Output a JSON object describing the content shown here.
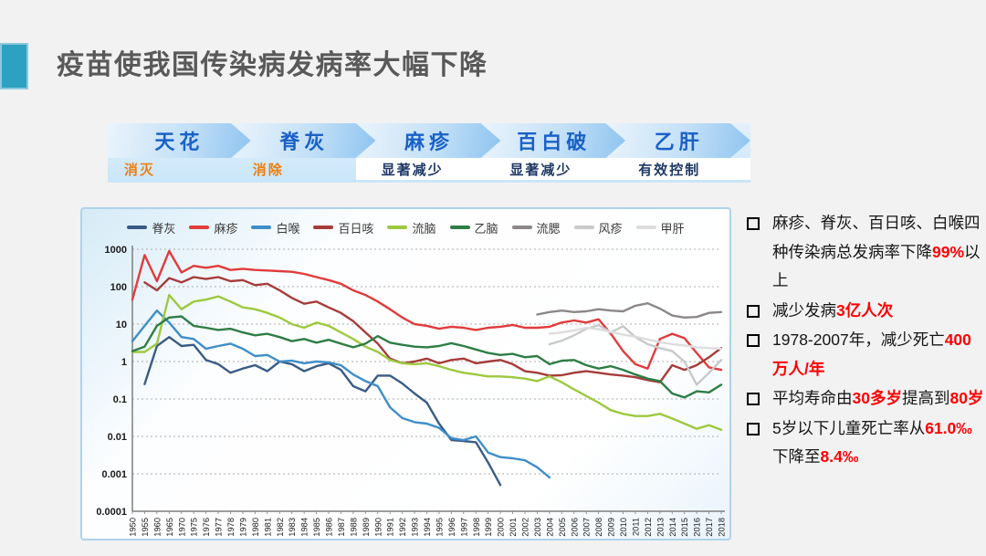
{
  "slide": {
    "background": "#F2F2F2"
  },
  "title": {
    "text": "疫苗使我国传染病发病率大幅下降",
    "accent_color": "#2EA1C0",
    "text_color": "#595959"
  },
  "banner": {
    "arrow_text_color": "#1A61C7",
    "status_colors": {
      "orange": "#F07E0E",
      "blue": "#1F3864"
    },
    "stages": [
      {
        "label": "天花",
        "status": "消灭",
        "status_style": "orange"
      },
      {
        "label": "脊灰",
        "status": "消除",
        "status_style": "orange"
      },
      {
        "label": "麻疹",
        "status": "显著减少",
        "status_style": "blue"
      },
      {
        "label": "百白破",
        "status": "显著减少",
        "status_style": "blue"
      },
      {
        "label": "乙肝",
        "status": "有效控制",
        "status_style": "blue"
      }
    ]
  },
  "chart_data": {
    "type": "line",
    "y_scale": "log",
    "ylim": [
      0.0001,
      1000
    ],
    "y_ticks": [
      "1000",
      "100",
      "10",
      "1",
      "0.1",
      "0.01",
      "0.001",
      "0.0001"
    ],
    "grid": "horizontal-dashed",
    "legend_position": "top",
    "categories": [
      "1950",
      "1955",
      "1960",
      "1965",
      "1970",
      "1975",
      "1976",
      "1977",
      "1978",
      "1979",
      "1980",
      "1981",
      "1982",
      "1983",
      "1984",
      "1985",
      "1986",
      "1987",
      "1988",
      "1989",
      "1990",
      "1991",
      "1992",
      "1993",
      "1994",
      "1995",
      "1996",
      "1997",
      "1998",
      "1999",
      "2000",
      "2001",
      "2002",
      "2003",
      "2004",
      "2005",
      "2006",
      "2007",
      "2008",
      "2009",
      "2010",
      "2011",
      "2012",
      "2013",
      "2014",
      "2015",
      "2016",
      "2017",
      "2018"
    ],
    "series": [
      {
        "name": "脊灰",
        "color": "#3A5C84",
        "values": [
          null,
          0.25,
          2.6,
          4.5,
          2.6,
          2.8,
          1.1,
          0.85,
          0.5,
          0.65,
          0.8,
          0.55,
          1.0,
          0.85,
          0.55,
          0.75,
          0.9,
          0.6,
          0.22,
          0.16,
          0.42,
          0.42,
          0.26,
          0.14,
          0.08,
          0.022,
          0.008,
          0.0075,
          0.007,
          0.002,
          0.0005,
          null,
          null,
          null,
          null,
          null,
          null,
          null,
          null,
          null,
          null,
          null,
          null,
          null,
          null,
          null,
          null,
          null,
          null
        ]
      },
      {
        "name": "麻疹",
        "color": "#E23B3B",
        "values": [
          45,
          700,
          140,
          900,
          240,
          360,
          320,
          360,
          280,
          300,
          280,
          270,
          260,
          250,
          220,
          180,
          150,
          120,
          80,
          60,
          40,
          25,
          15,
          10,
          9,
          7.5,
          8.5,
          8,
          7,
          8,
          8.5,
          9.5,
          8,
          8,
          8.5,
          11,
          12.5,
          11,
          13.5,
          5.5,
          1.9,
          0.85,
          0.65,
          4,
          5.5,
          4.2,
          1.7,
          0.7,
          0.6
        ]
      },
      {
        "name": "白喉",
        "color": "#3E8EC9",
        "values": [
          3.5,
          9,
          23,
          11,
          4.5,
          4,
          2.2,
          2.6,
          3.0,
          2.2,
          1.4,
          1.5,
          1.0,
          1.05,
          0.9,
          1.0,
          0.95,
          0.8,
          0.45,
          0.3,
          0.22,
          0.06,
          0.031,
          0.024,
          0.022,
          0.017,
          0.009,
          0.008,
          0.01,
          0.0037,
          0.0028,
          0.0026,
          0.0023,
          0.0015,
          0.0008,
          null,
          null,
          null,
          null,
          null,
          null,
          null,
          null,
          null,
          null,
          null,
          null,
          null,
          null
        ]
      },
      {
        "name": "百日咳",
        "color": "#A63C3A",
        "values": [
          null,
          130,
          80,
          170,
          130,
          180,
          160,
          180,
          140,
          150,
          110,
          120,
          80,
          50,
          35,
          40,
          28,
          20,
          12,
          6,
          3,
          1.2,
          0.9,
          1.0,
          1.2,
          0.9,
          1.1,
          1.2,
          0.9,
          1.0,
          1.1,
          0.85,
          0.55,
          0.5,
          0.42,
          0.43,
          0.5,
          0.55,
          0.5,
          0.45,
          0.42,
          0.38,
          0.32,
          0.28,
          0.8,
          0.6,
          0.8,
          1.3,
          2.3
        ]
      },
      {
        "name": "流脑",
        "color": "#9DC93F",
        "values": [
          1.8,
          1.8,
          3,
          60,
          25,
          40,
          45,
          55,
          40,
          28,
          25,
          20,
          15,
          10,
          8,
          11,
          9,
          6,
          4,
          2.5,
          1.8,
          1.1,
          0.9,
          0.85,
          0.9,
          0.75,
          0.6,
          0.5,
          0.45,
          0.4,
          0.4,
          0.38,
          0.35,
          0.3,
          0.4,
          0.28,
          0.18,
          0.12,
          0.08,
          0.05,
          0.04,
          0.035,
          0.035,
          0.04,
          0.03,
          0.022,
          0.016,
          0.02,
          0.015
        ]
      },
      {
        "name": "乙脑",
        "color": "#2E7D45",
        "values": [
          1.9,
          2.5,
          9,
          15,
          16,
          9,
          8,
          7,
          7.5,
          6,
          5,
          5.5,
          4.5,
          3.5,
          4,
          3.2,
          3.8,
          3,
          2.4,
          3,
          4.8,
          3.2,
          2.8,
          2.5,
          2.4,
          2.6,
          3.1,
          2.6,
          2.1,
          1.7,
          1.5,
          1.6,
          1.3,
          1.4,
          0.85,
          1.05,
          1.1,
          0.8,
          0.65,
          0.75,
          0.6,
          0.45,
          0.35,
          0.3,
          0.14,
          0.11,
          0.16,
          0.15,
          0.24
        ]
      },
      {
        "name": "流腮",
        "color": "#8C8888",
        "values": [
          null,
          null,
          null,
          null,
          null,
          null,
          null,
          null,
          null,
          null,
          null,
          null,
          null,
          null,
          null,
          null,
          null,
          null,
          null,
          null,
          null,
          null,
          null,
          null,
          null,
          null,
          null,
          null,
          null,
          null,
          null,
          null,
          null,
          18,
          21,
          23,
          21,
          22,
          25,
          23,
          22,
          31,
          36,
          26,
          17,
          15,
          15.5,
          20,
          21
        ]
      },
      {
        "name": "风疹",
        "color": "#C9C9C9",
        "values": [
          null,
          null,
          null,
          null,
          null,
          null,
          null,
          null,
          null,
          null,
          null,
          null,
          null,
          null,
          null,
          null,
          null,
          null,
          null,
          null,
          null,
          null,
          null,
          null,
          null,
          null,
          null,
          null,
          null,
          null,
          null,
          null,
          null,
          null,
          2.9,
          3.6,
          5,
          7.5,
          9.4,
          6,
          8.8,
          4.5,
          2.9,
          2.3,
          1.9,
          1.0,
          0.24,
          0.5,
          1.1
        ]
      },
      {
        "name": "甲肝",
        "color": "#DDDDDD",
        "values": [
          null,
          null,
          null,
          null,
          null,
          null,
          null,
          null,
          null,
          null,
          null,
          null,
          null,
          null,
          null,
          null,
          null,
          null,
          null,
          null,
          null,
          null,
          null,
          null,
          null,
          null,
          null,
          null,
          null,
          null,
          null,
          null,
          null,
          null,
          5.5,
          6,
          6.8,
          8,
          7.3,
          6.2,
          5.2,
          4.6,
          3.9,
          3.3,
          2.9,
          2.7,
          2.4,
          2.3,
          2.2
        ]
      }
    ],
    "style": {
      "gridline_color": "#ABABAB",
      "axis_color": "#7F7F7F",
      "plot_bg": "#FFFFFF"
    }
  },
  "bullets": {
    "highlight_color": "#FF0000",
    "items": [
      {
        "parts": [
          {
            "t": "麻疹、脊灰、百日咳、白喉四种传染病总发病率下降",
            "hl": false
          },
          {
            "t": "99%",
            "hl": true
          },
          {
            "t": "以上",
            "hl": false
          }
        ]
      },
      {
        "parts": [
          {
            "t": "减少发病",
            "hl": false
          },
          {
            "t": "3亿人次",
            "hl": true
          }
        ]
      },
      {
        "parts": [
          {
            "t": "1978-2007年，减少死亡",
            "hl": false
          },
          {
            "t": "400万人/年",
            "hl": true
          }
        ]
      },
      {
        "parts": [
          {
            "t": "平均寿命由",
            "hl": false
          },
          {
            "t": "30多岁",
            "hl": true
          },
          {
            "t": "提高到",
            "hl": false
          },
          {
            "t": "80岁",
            "hl": true
          }
        ]
      },
      {
        "parts": [
          {
            "t": "5岁以下儿童死亡率从",
            "hl": false
          },
          {
            "t": "61.0‰",
            "hl": true
          },
          {
            "t": "下降至",
            "hl": false
          },
          {
            "t": "8.4‰",
            "hl": true
          }
        ]
      }
    ]
  }
}
